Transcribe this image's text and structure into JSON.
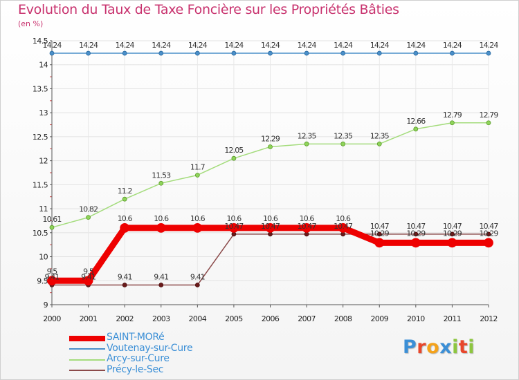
{
  "header": {
    "title": "Evolution du Taux de Taxe Foncière sur les Propriétés Bâties",
    "unit": "(en %)"
  },
  "logo": {
    "text": "Proxiti",
    "letter_colors": [
      "#3b8fd6",
      "#e8462b",
      "#f4a21b",
      "#3b8fd6",
      "#8dc63f",
      "#e8462b",
      "#8dc63f"
    ]
  },
  "chart_data": {
    "type": "line",
    "title": "Evolution du Taux de Taxe Foncière sur les Propriétés Bâties",
    "ylabel": "(en %)",
    "xlabel": "",
    "x": [
      "2000",
      "2001",
      "2002",
      "2003",
      "2004",
      "2005",
      "2006",
      "2007",
      "2008",
      "2009",
      "2010",
      "2011",
      "2012"
    ],
    "ylim": [
      9,
      14.5
    ],
    "yticks": [
      "9",
      "9.5",
      "10",
      "10.5",
      "11",
      "11.5",
      "12",
      "12.5",
      "13",
      "13.5",
      "14",
      "14.5"
    ],
    "legend_position": "bottom-left",
    "series": [
      {
        "name": "SAINT-MORé",
        "color": "#ee0000",
        "values": [
          9.5,
          9.5,
          10.6,
          10.6,
          10.6,
          10.6,
          10.6,
          10.6,
          10.6,
          10.29,
          10.29,
          10.29,
          10.29
        ],
        "labels": [
          "9.5",
          "9.5",
          "10.6",
          "10.6",
          "10.6",
          "10.6",
          "10.6",
          "10.6",
          "10.6",
          "10.29",
          "10.29",
          "10.29",
          "10.29"
        ]
      },
      {
        "name": "Voutenay-sur-Cure",
        "color": "#4a8fc9",
        "values": [
          14.24,
          14.24,
          14.24,
          14.24,
          14.24,
          14.24,
          14.24,
          14.24,
          14.24,
          14.24,
          14.24,
          14.24,
          14.24
        ],
        "labels": [
          "14.24",
          "14.24",
          "14.24",
          "14.24",
          "14.24",
          "14.24",
          "14.24",
          "14.24",
          "14.24",
          "14.24",
          "14.24",
          "14.24",
          "14.24"
        ]
      },
      {
        "name": "Arcy-sur-Cure",
        "color": "#a4dc7c",
        "values": [
          10.61,
          10.82,
          11.2,
          11.53,
          11.7,
          12.05,
          12.29,
          12.35,
          12.35,
          12.35,
          12.66,
          12.79,
          12.79
        ],
        "labels": [
          "10.61",
          "10.82",
          "11.2",
          "11.53",
          "11.7",
          "12.05",
          "12.29",
          "12.35",
          "12.35",
          "12.35",
          "12.66",
          "12.79",
          "12.79"
        ]
      },
      {
        "name": "Précy-le-Sec",
        "color": "#8b4a4a",
        "values": [
          9.41,
          9.41,
          9.41,
          9.41,
          9.41,
          10.47,
          10.47,
          10.47,
          10.47,
          10.47,
          10.47,
          10.47,
          10.47
        ],
        "labels": [
          "9.41",
          "9.41",
          "9.41",
          "9.41",
          "9.41",
          "10.47",
          "10.47",
          "10.47",
          "10.47",
          "10.47",
          "10.47",
          "10.47",
          "10.47"
        ]
      }
    ]
  }
}
